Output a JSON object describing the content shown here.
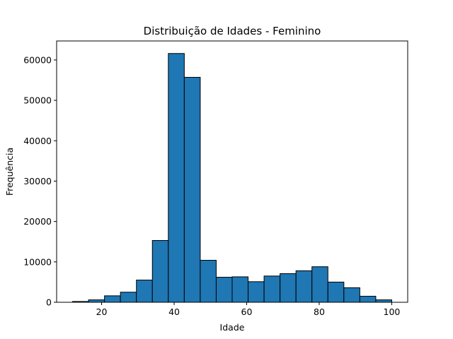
{
  "chart_data": {
    "type": "bar",
    "title": "Distribuição de Idades - Feminino",
    "xlabel": "Idade",
    "ylabel": "Frequência",
    "bins": [
      {
        "start": 12.0,
        "end": 16.4,
        "value": 200
      },
      {
        "start": 16.4,
        "end": 20.8,
        "value": 600
      },
      {
        "start": 20.8,
        "end": 25.2,
        "value": 1600
      },
      {
        "start": 25.2,
        "end": 29.6,
        "value": 2500
      },
      {
        "start": 29.6,
        "end": 34.0,
        "value": 5500
      },
      {
        "start": 34.0,
        "end": 38.4,
        "value": 15300
      },
      {
        "start": 38.4,
        "end": 42.8,
        "value": 61600
      },
      {
        "start": 42.8,
        "end": 47.2,
        "value": 55700
      },
      {
        "start": 47.2,
        "end": 51.6,
        "value": 10400
      },
      {
        "start": 51.6,
        "end": 56.0,
        "value": 6200
      },
      {
        "start": 56.0,
        "end": 60.4,
        "value": 6300
      },
      {
        "start": 60.4,
        "end": 64.8,
        "value": 5100
      },
      {
        "start": 64.8,
        "end": 69.2,
        "value": 6500
      },
      {
        "start": 69.2,
        "end": 73.6,
        "value": 7100
      },
      {
        "start": 73.6,
        "end": 78.0,
        "value": 7800
      },
      {
        "start": 78.0,
        "end": 82.4,
        "value": 8800
      },
      {
        "start": 82.4,
        "end": 86.8,
        "value": 5000
      },
      {
        "start": 86.8,
        "end": 91.2,
        "value": 3600
      },
      {
        "start": 91.2,
        "end": 95.6,
        "value": 1500
      },
      {
        "start": 95.6,
        "end": 100.0,
        "value": 600
      }
    ],
    "xlim": [
      7.6,
      104.4
    ],
    "ylim": [
      0,
      64700
    ],
    "xticks": [
      20,
      40,
      60,
      80,
      100
    ],
    "yticks": [
      0,
      10000,
      20000,
      30000,
      40000,
      50000,
      60000
    ],
    "bar_color": "#1f77b4",
    "edge_color": "#000000",
    "grid": false,
    "legend": "none"
  }
}
